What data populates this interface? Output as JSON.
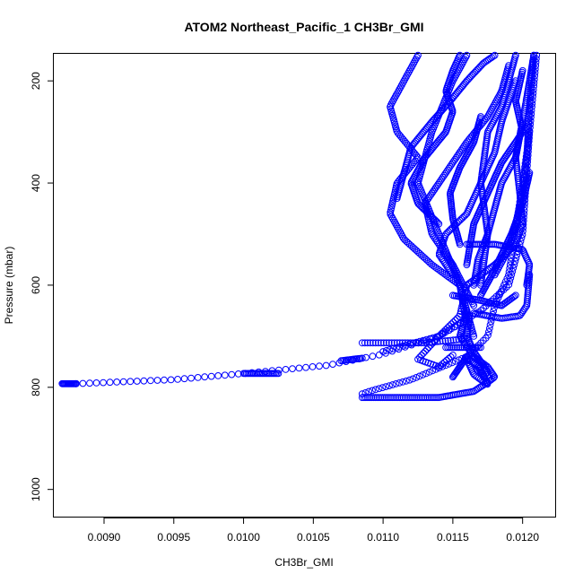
{
  "chart_data": {
    "type": "scatter",
    "title": "ATOM2 Northeast_Pacific_1 CH3Br_GMI",
    "xlabel": "CH3Br_GMI",
    "ylabel": "Pressure (mbar)",
    "xlim": [
      0.00864,
      0.01224
    ],
    "ylim": [
      1055,
      147
    ],
    "y_inverted": true,
    "grid": false,
    "marker": "open-circle",
    "color": "#0000ff",
    "xticks": [
      {
        "value": 0.009,
        "label": "0.0090"
      },
      {
        "value": 0.0095,
        "label": "0.0095"
      },
      {
        "value": 0.01,
        "label": "0.0100"
      },
      {
        "value": 0.0105,
        "label": "0.0105"
      },
      {
        "value": 0.011,
        "label": "0.0110"
      },
      {
        "value": 0.0115,
        "label": "0.0115"
      },
      {
        "value": 0.012,
        "label": "0.0120"
      }
    ],
    "yticks": [
      {
        "value": 200,
        "label": "200"
      },
      {
        "value": 400,
        "label": "400"
      },
      {
        "value": 600,
        "label": "600"
      },
      {
        "value": 800,
        "label": "800"
      },
      {
        "value": 1000,
        "label": "1000"
      }
    ],
    "tracks": [
      {
        "points": [
          [
            0.0087,
            793
          ],
          [
            0.00875,
            793
          ],
          [
            0.0088,
            793
          ]
        ],
        "n": 16
      },
      {
        "points": [
          [
            0.0088,
            793
          ],
          [
            0.0095,
            785
          ],
          [
            0.01,
            773
          ],
          [
            0.0106,
            757
          ],
          [
            0.011,
            735
          ],
          [
            0.0114,
            700
          ],
          [
            0.0116,
            668
          ]
        ],
        "n": 60
      },
      {
        "points": [
          [
            0.01,
            773
          ],
          [
            0.01025,
            773
          ]
        ],
        "n": 25
      },
      {
        "points": [
          [
            0.0107,
            748
          ],
          [
            0.01085,
            743
          ]
        ],
        "n": 14
      },
      {
        "points": [
          [
            0.01085,
            713
          ],
          [
            0.0113,
            713
          ],
          [
            0.0116,
            705
          ]
        ],
        "n": 40
      },
      {
        "points": [
          [
            0.011,
            730
          ],
          [
            0.0114,
            700
          ],
          [
            0.0117,
            650
          ],
          [
            0.0119,
            600
          ],
          [
            0.012,
            500
          ],
          [
            0.01205,
            300
          ],
          [
            0.0121,
            150
          ]
        ],
        "n": 110
      },
      {
        "points": [
          [
            0.0115,
            737
          ],
          [
            0.0114,
            760
          ],
          [
            0.01125,
            745
          ],
          [
            0.0114,
            700
          ],
          [
            0.01155,
            660
          ],
          [
            0.0116,
            600
          ]
        ],
        "n": 50
      },
      {
        "points": [
          [
            0.01145,
            722
          ],
          [
            0.0117,
            722
          ]
        ],
        "n": 20
      },
      {
        "points": [
          [
            0.01085,
            820
          ],
          [
            0.0114,
            820
          ],
          [
            0.01165,
            808
          ],
          [
            0.01175,
            790
          ]
        ],
        "n": 70
      },
      {
        "points": [
          [
            0.01085,
            813
          ],
          [
            0.0109,
            808
          ],
          [
            0.0112,
            785
          ],
          [
            0.0116,
            740
          ],
          [
            0.01175,
            700
          ],
          [
            0.0118,
            640
          ],
          [
            0.0119,
            580
          ],
          [
            0.012,
            400
          ],
          [
            0.01205,
            300
          ]
        ],
        "n": 100
      },
      {
        "points": [
          [
            0.0116,
            740
          ],
          [
            0.0117,
            765
          ],
          [
            0.01175,
            795
          ],
          [
            0.01165,
            775
          ],
          [
            0.0116,
            745
          ],
          [
            0.0117,
            760
          ]
        ],
        "n": 45
      },
      {
        "points": [
          [
            0.01175,
            790
          ],
          [
            0.0118,
            780
          ],
          [
            0.01175,
            760
          ],
          [
            0.01165,
            740
          ],
          [
            0.0116,
            720
          ],
          [
            0.01155,
            700
          ],
          [
            0.0116,
            650
          ]
        ],
        "n": 50
      },
      {
        "points": [
          [
            0.01168,
            760
          ],
          [
            0.01172,
            780
          ],
          [
            0.01175,
            770
          ],
          [
            0.01165,
            730
          ],
          [
            0.0116,
            700
          ],
          [
            0.01162,
            660
          ]
        ],
        "n": 45
      },
      {
        "points": [
          [
            0.0115,
            780
          ],
          [
            0.01155,
            760
          ],
          [
            0.0116,
            740
          ]
        ],
        "n": 20
      },
      {
        "points": [
          [
            0.0116,
            680
          ],
          [
            0.01155,
            600
          ],
          [
            0.0114,
            500
          ],
          [
            0.01125,
            400
          ],
          [
            0.01135,
            300
          ],
          [
            0.0115,
            200
          ],
          [
            0.0116,
            150
          ]
        ],
        "n": 130
      },
      {
        "points": [
          [
            0.01165,
            700
          ],
          [
            0.01155,
            600
          ],
          [
            0.01135,
            560
          ],
          [
            0.01115,
            510
          ],
          [
            0.01105,
            460
          ],
          [
            0.0111,
            400
          ],
          [
            0.01125,
            350
          ],
          [
            0.0111,
            300
          ],
          [
            0.01105,
            250
          ],
          [
            0.01115,
            200
          ],
          [
            0.01125,
            150
          ]
        ],
        "n": 150
      },
      {
        "points": [
          [
            0.0117,
            600
          ],
          [
            0.01175,
            500
          ],
          [
            0.0117,
            400
          ],
          [
            0.01175,
            300
          ],
          [
            0.01185,
            250
          ],
          [
            0.0119,
            200
          ],
          [
            0.01195,
            150
          ]
        ],
        "n": 120
      },
      {
        "points": [
          [
            0.01165,
            640
          ],
          [
            0.0115,
            560
          ],
          [
            0.01135,
            500
          ],
          [
            0.0113,
            440
          ],
          [
            0.01145,
            380
          ],
          [
            0.0116,
            320
          ],
          [
            0.01175,
            270
          ],
          [
            0.01185,
            220
          ],
          [
            0.0119,
            170
          ]
        ],
        "n": 130
      },
      {
        "points": [
          [
            0.0116,
            560
          ],
          [
            0.01165,
            480
          ],
          [
            0.01175,
            420
          ],
          [
            0.01185,
            360
          ],
          [
            0.012,
            300
          ],
          [
            0.01195,
            240
          ],
          [
            0.012,
            180
          ]
        ],
        "n": 120
      },
      {
        "points": [
          [
            0.0116,
            600
          ],
          [
            0.0118,
            560
          ],
          [
            0.01195,
            520
          ],
          [
            0.012,
            480
          ],
          [
            0.01198,
            420
          ],
          [
            0.01195,
            350
          ],
          [
            0.012,
            280
          ],
          [
            0.01205,
            200
          ],
          [
            0.01208,
            150
          ]
        ],
        "n": 130
      },
      {
        "points": [
          [
            0.0115,
            580
          ],
          [
            0.0114,
            540
          ],
          [
            0.01145,
            500
          ],
          [
            0.0116,
            460
          ],
          [
            0.0117,
            400
          ],
          [
            0.0118,
            340
          ],
          [
            0.01185,
            280
          ],
          [
            0.01195,
            200
          ]
        ],
        "n": 110
      },
      {
        "points": [
          [
            0.0115,
            620
          ],
          [
            0.0117,
            630
          ],
          [
            0.01185,
            640
          ],
          [
            0.01195,
            620
          ]
        ],
        "n": 40
      },
      {
        "points": [
          [
            0.01165,
            655
          ],
          [
            0.01185,
            665
          ],
          [
            0.01198,
            660
          ],
          [
            0.01203,
            640
          ],
          [
            0.01205,
            580
          ]
        ],
        "n": 45
      },
      {
        "points": [
          [
            0.0114,
            480
          ],
          [
            0.01125,
            440
          ],
          [
            0.0112,
            400
          ],
          [
            0.0113,
            350
          ],
          [
            0.01145,
            300
          ],
          [
            0.0115,
            260
          ],
          [
            0.01145,
            220
          ],
          [
            0.0115,
            180
          ],
          [
            0.01155,
            150
          ]
        ],
        "n": 110
      },
      {
        "points": [
          [
            0.0111,
            430
          ],
          [
            0.01115,
            380
          ],
          [
            0.0112,
            330
          ],
          [
            0.01135,
            280
          ],
          [
            0.01148,
            240
          ],
          [
            0.0116,
            200
          ],
          [
            0.01172,
            165
          ],
          [
            0.0118,
            150
          ]
        ],
        "n": 95
      },
      {
        "points": [
          [
            0.01208,
            150
          ],
          [
            0.01205,
            250
          ],
          [
            0.01203,
            350
          ],
          [
            0.012,
            420
          ],
          [
            0.01195,
            480
          ],
          [
            0.0119,
            530
          ],
          [
            0.0118,
            580
          ]
        ],
        "n": 100
      },
      {
        "points": [
          [
            0.012,
            280
          ],
          [
            0.01195,
            350
          ],
          [
            0.01185,
            400
          ],
          [
            0.0118,
            450
          ],
          [
            0.01175,
            500
          ],
          [
            0.01168,
            550
          ],
          [
            0.01165,
            600
          ]
        ],
        "n": 90
      },
      {
        "points": [
          [
            0.01205,
            380
          ],
          [
            0.012,
            440
          ],
          [
            0.01192,
            500
          ],
          [
            0.01185,
            540
          ],
          [
            0.01178,
            580
          ],
          [
            0.0117,
            620
          ]
        ],
        "n": 80
      },
      {
        "points": [
          [
            0.01155,
            520
          ],
          [
            0.0115,
            470
          ],
          [
            0.01148,
            420
          ],
          [
            0.01155,
            370
          ],
          [
            0.01165,
            320
          ],
          [
            0.0117,
            270
          ]
        ],
        "n": 80
      },
      {
        "points": [
          [
            0.0116,
            520
          ],
          [
            0.0118,
            520
          ],
          [
            0.012,
            530
          ],
          [
            0.01205,
            560
          ],
          [
            0.01203,
            600
          ]
        ],
        "n": 50
      }
    ]
  }
}
